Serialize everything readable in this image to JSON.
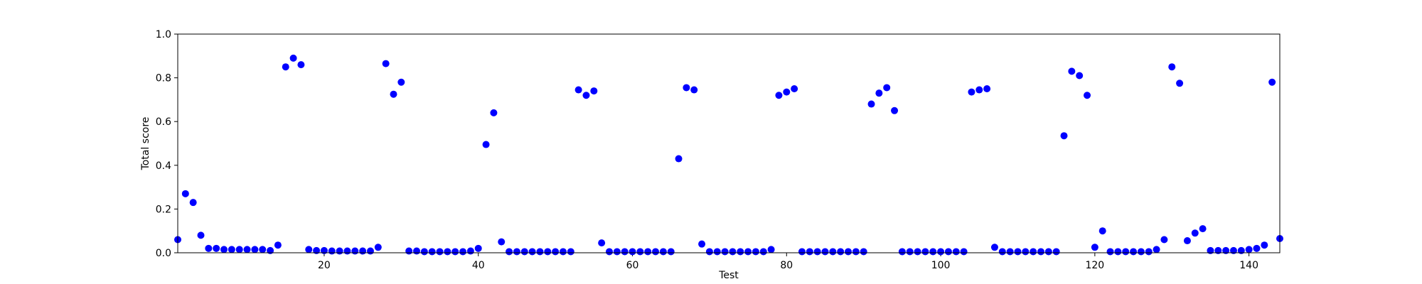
{
  "chart_data": {
    "type": "scatter",
    "x_label": "Test",
    "y_label": "Total score",
    "color": "#0000ff",
    "x": [
      1,
      2,
      3,
      4,
      5,
      6,
      7,
      8,
      9,
      10,
      11,
      12,
      13,
      14,
      15,
      16,
      17,
      18,
      19,
      20,
      21,
      22,
      23,
      24,
      25,
      26,
      27,
      28,
      29,
      30,
      31,
      32,
      33,
      34,
      35,
      36,
      37,
      38,
      39,
      40,
      41,
      42,
      43,
      44,
      45,
      46,
      47,
      48,
      49,
      50,
      51,
      52,
      53,
      54,
      55,
      56,
      57,
      58,
      59,
      60,
      61,
      62,
      63,
      64,
      65,
      66,
      67,
      68,
      69,
      70,
      71,
      72,
      73,
      74,
      75,
      76,
      77,
      78,
      79,
      80,
      81,
      82,
      83,
      84,
      85,
      86,
      87,
      88,
      89,
      90,
      91,
      92,
      93,
      94,
      95,
      96,
      97,
      98,
      99,
      100,
      101,
      102,
      103,
      104,
      105,
      106,
      107,
      108,
      109,
      110,
      111,
      112,
      113,
      114,
      115,
      116,
      117,
      118,
      119,
      120,
      121,
      122,
      123,
      124,
      125,
      126,
      127,
      128,
      129,
      130,
      131,
      132,
      133,
      134,
      135,
      136,
      137,
      138,
      139,
      140,
      141,
      142,
      143,
      144
    ],
    "values": [
      0.06,
      0.27,
      0.23,
      0.08,
      0.02,
      0.02,
      0.015,
      0.015,
      0.015,
      0.015,
      0.015,
      0.015,
      0.01,
      0.035,
      0.85,
      0.89,
      0.86,
      0.015,
      0.01,
      0.01,
      0.008,
      0.008,
      0.008,
      0.008,
      0.008,
      0.008,
      0.025,
      0.865,
      0.725,
      0.78,
      0.008,
      0.008,
      0.005,
      0.005,
      0.005,
      0.005,
      0.005,
      0.005,
      0.008,
      0.02,
      0.495,
      0.64,
      0.05,
      0.005,
      0.005,
      0.005,
      0.005,
      0.005,
      0.005,
      0.005,
      0.005,
      0.005,
      0.745,
      0.72,
      0.74,
      0.045,
      0.005,
      0.005,
      0.005,
      0.005,
      0.005,
      0.005,
      0.005,
      0.005,
      0.005,
      0.43,
      0.755,
      0.745,
      0.04,
      0.005,
      0.005,
      0.005,
      0.005,
      0.005,
      0.005,
      0.005,
      0.005,
      0.015,
      0.72,
      0.735,
      0.75,
      0.005,
      0.005,
      0.005,
      0.005,
      0.005,
      0.005,
      0.005,
      0.005,
      0.005,
      0.68,
      0.73,
      0.755,
      0.65,
      0.005,
      0.005,
      0.005,
      0.005,
      0.005,
      0.005,
      0.005,
      0.005,
      0.005,
      0.735,
      0.745,
      0.75,
      0.025,
      0.005,
      0.005,
      0.005,
      0.005,
      0.005,
      0.005,
      0.005,
      0.005,
      0.535,
      0.83,
      0.81,
      0.72,
      0.025,
      0.1,
      0.005,
      0.005,
      0.005,
      0.005,
      0.005,
      0.005,
      0.015,
      0.06,
      0.85,
      0.775,
      0.055,
      0.09,
      0.11,
      0.01,
      0.01,
      0.01,
      0.01,
      0.01,
      0.015,
      0.02,
      0.035,
      0.78,
      0.065
    ],
    "xlim": [
      1,
      144
    ],
    "ylim": [
      0,
      1
    ],
    "xticks": [
      20,
      40,
      60,
      80,
      100,
      120,
      140
    ],
    "yticks": [
      {
        "value": 0,
        "label": "0.0"
      },
      {
        "value": 0.2,
        "label": "0.2"
      },
      {
        "value": 0.4,
        "label": "0.4"
      },
      {
        "value": 0.6,
        "label": "0.6"
      },
      {
        "value": 0.8,
        "label": "0.8"
      },
      {
        "value": 1,
        "label": "1.0"
      }
    ]
  }
}
